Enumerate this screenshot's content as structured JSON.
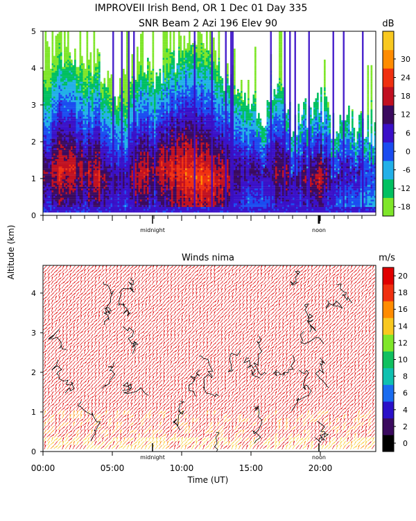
{
  "header": {
    "line1": "IMPROVEII  Irish Bend, OR    1 Dec 01 Day 335",
    "line2": "SNR Beam 2 Azi 196 Elev 90"
  },
  "ylabel": "Altitude (km)",
  "chart_data": [
    {
      "type": "heatmap",
      "title": "SNR Beam 2 Azi 196 Elev 90",
      "ylim": [
        0,
        5
      ],
      "y_ticks": [
        "0",
        "1",
        "2",
        "3",
        "4",
        "5"
      ],
      "x_marks": [
        "midnight",
        "noon"
      ],
      "colorbar": {
        "unit": "dB",
        "labels": [
          "-18",
          "-12",
          "-6",
          "0",
          "6",
          "12",
          "18",
          "24",
          "30"
        ],
        "colors": [
          "#7fe62a",
          "#00c060",
          "#22b0e8",
          "#1a4cf0",
          "#3a10c8",
          "#3a0a5e",
          "#c01020",
          "#f03010",
          "#ff8c00",
          "#f8c820"
        ]
      },
      "profile": {
        "x_hours": [
          0,
          1,
          2,
          3,
          4,
          5,
          6,
          7,
          8,
          9,
          10,
          11,
          12,
          13,
          14,
          15,
          16,
          17,
          18,
          19,
          20,
          21,
          22,
          23
        ],
        "top_km": [
          4.3,
          4.6,
          4.2,
          3.9,
          4.1,
          3.2,
          3.6,
          4.4,
          3.5,
          4.0,
          4.5,
          4.9,
          4.7,
          3.8,
          3.4,
          3.1,
          2.6,
          3.3,
          2.4,
          2.8,
          3.0,
          2.2,
          2.5,
          2.3
        ],
        "peak_db": [
          12,
          20,
          18,
          16,
          18,
          10,
          8,
          22,
          14,
          20,
          24,
          26,
          24,
          18,
          12,
          10,
          8,
          16,
          10,
          12,
          18,
          6,
          10,
          6
        ]
      }
    },
    {
      "type": "wind_barbs",
      "title": "Winds nima",
      "ylim": [
        0,
        4.7
      ],
      "y_ticks": [
        "0",
        "1",
        "2",
        "3",
        "4"
      ],
      "x_ticks": [
        "00:00",
        "05:00",
        "10:00",
        "15:00",
        "20:00"
      ],
      "x_marks": [
        "midnight",
        "noon"
      ],
      "xlabel": "Time (UT)",
      "colorbar": {
        "unit": "m/s",
        "labels": [
          "0",
          "2",
          "4",
          "6",
          "8",
          "10",
          "12",
          "14",
          "16",
          "18",
          "20"
        ],
        "colors": [
          "#000000",
          "#3a0a5e",
          "#2a10c8",
          "#1a6cf0",
          "#10c0b0",
          "#10c060",
          "#7fe62a",
          "#f8c820",
          "#ff8c00",
          "#f03010",
          "#e00000"
        ]
      }
    }
  ]
}
